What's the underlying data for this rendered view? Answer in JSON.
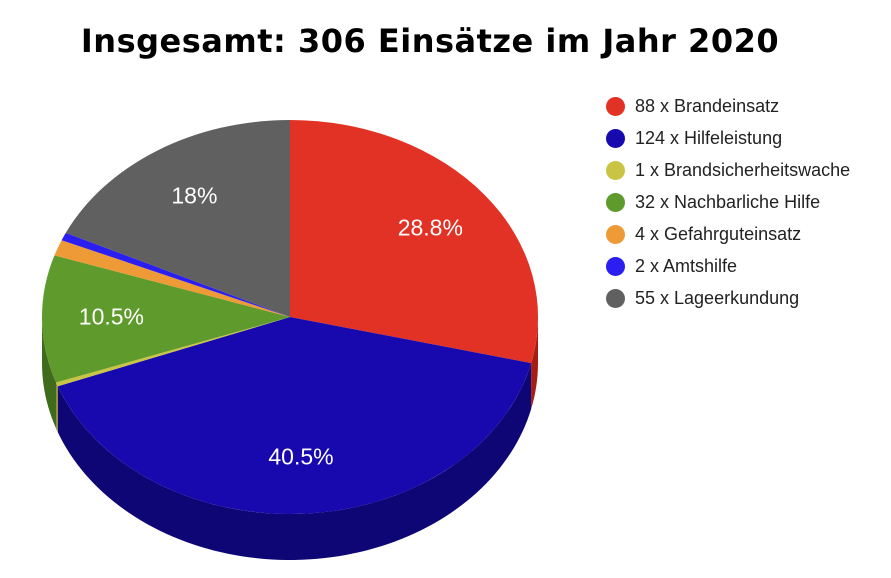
{
  "chart_data": {
    "type": "pie",
    "title": "Insgesamt: 306 Einsätze im Jahr 2020",
    "legend_position": "right",
    "slices": [
      {
        "legend": "88 x Brandeinsatz",
        "value": 88,
        "label": "28.8%",
        "color": "#E23225",
        "side_color": "#A51D13"
      },
      {
        "legend": "124 x Hilfeleistung",
        "value": 124,
        "label": "40.5%",
        "color": "#1709AE",
        "side_color": "#0F0675"
      },
      {
        "legend": "1 x Brandsicherheitswache",
        "value": 1,
        "label": "",
        "color": "#C9C444",
        "side_color": "#8E8A2E"
      },
      {
        "legend": "32 x Nachbarliche Hilfe",
        "value": 32,
        "label": "10.5%",
        "color": "#5F9A2C",
        "side_color": "#406A1C"
      },
      {
        "legend": "4 x Gefahrguteinsatz",
        "value": 4,
        "label": "",
        "color": "#EE9A37",
        "side_color": "#A96A22"
      },
      {
        "legend": "2 x Amtshilfe",
        "value": 2,
        "label": "",
        "color": "#2A1EF0",
        "side_color": "#1A12A8"
      },
      {
        "legend": "55 x Lageerkundung",
        "value": 55,
        "label": "18%",
        "color": "#606060",
        "side_color": "#3F3F3F"
      }
    ]
  }
}
